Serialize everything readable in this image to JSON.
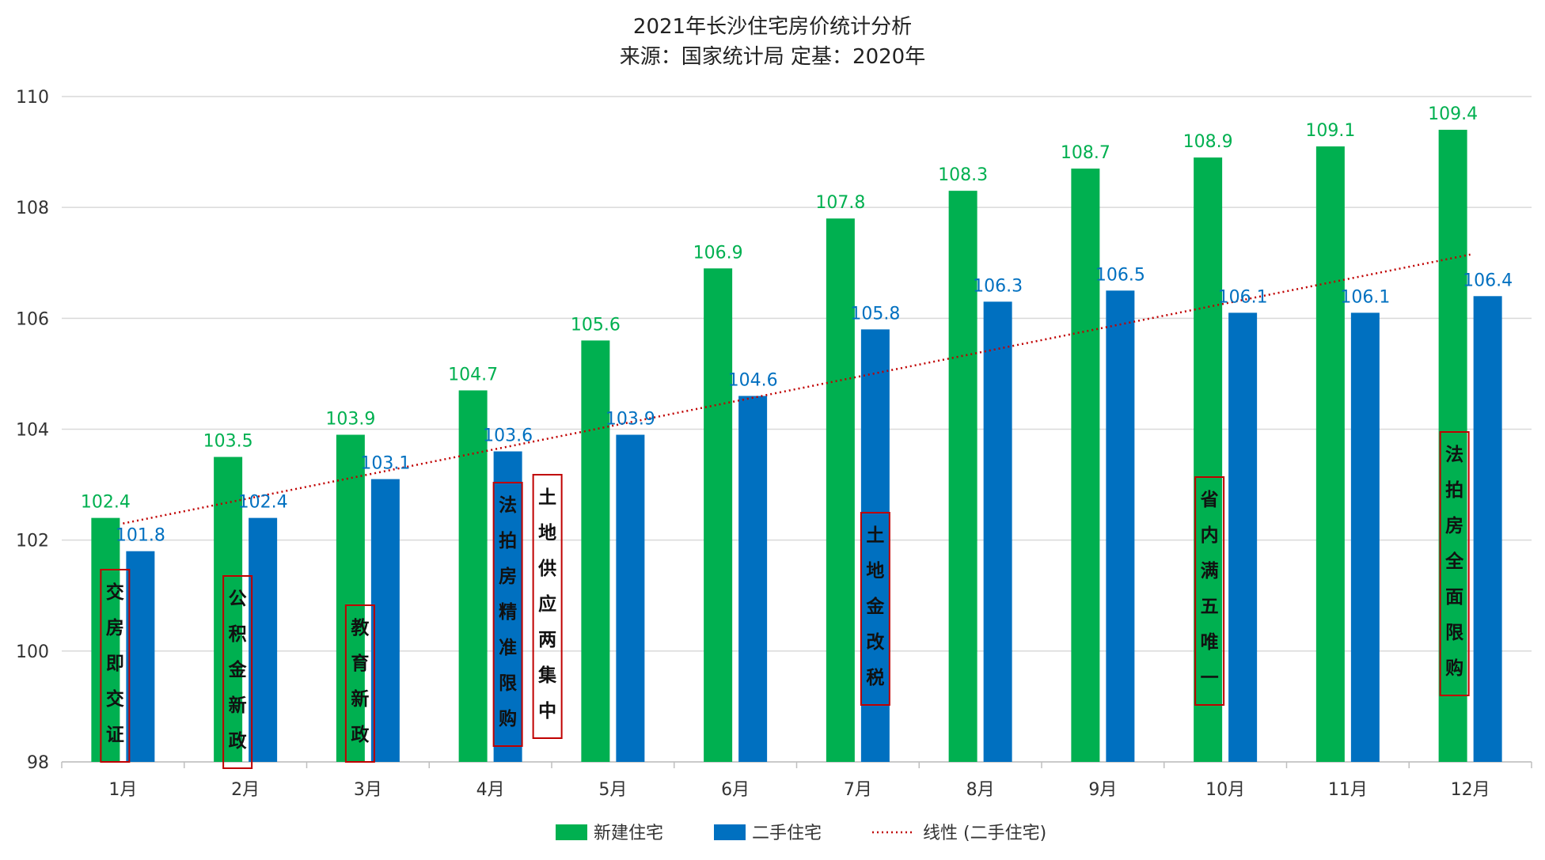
{
  "chart_data": {
    "type": "bar",
    "title": "2021年长沙住宅房价统计分析",
    "subtitle": "来源：国家统计局 定基：2020年",
    "xlabel": "",
    "ylabel": "",
    "categories": [
      "1月",
      "2月",
      "3月",
      "4月",
      "5月",
      "6月",
      "7月",
      "8月",
      "9月",
      "10月",
      "11月",
      "12月"
    ],
    "ylim": [
      98,
      110
    ],
    "yticks": [
      "98",
      "100",
      "102",
      "104",
      "106",
      "108",
      "110"
    ],
    "grid": true,
    "legend_position": "bottom",
    "series": [
      {
        "name": "新建住宅",
        "color": "#00B050",
        "values": [
          102.4,
          103.5,
          103.9,
          104.7,
          105.6,
          106.9,
          107.8,
          108.3,
          108.7,
          108.9,
          109.1,
          109.4
        ],
        "labels": [
          "102.4",
          "103.5",
          "103.9",
          "104.7",
          "105.6",
          "106.9",
          "107.8",
          "108.3",
          "108.7",
          "108.9",
          "109.1",
          "109.4"
        ]
      },
      {
        "name": "二手住宅",
        "color": "#0070C0",
        "values": [
          101.8,
          102.4,
          103.1,
          103.6,
          103.9,
          104.6,
          105.8,
          106.3,
          106.5,
          106.1,
          106.1,
          106.4
        ],
        "labels": [
          "101.8",
          "102.4",
          "103.1",
          "103.6",
          "103.9",
          "104.6",
          "105.8",
          "106.3",
          "106.5",
          "106.1",
          "106.1",
          "106.4"
        ]
      }
    ],
    "trendline": {
      "name": "线性 (二手住宅)",
      "color": "#C00000",
      "style": "dotted",
      "start": 102.3,
      "end": 107.15
    },
    "annotations": [
      {
        "text": "交房即交证",
        "month_index": 0
      },
      {
        "text": "公积金新政",
        "month_index": 1
      },
      {
        "text": "教育新政",
        "month_index": 2
      },
      {
        "text": "法拍房精准限购",
        "month_index": 3
      },
      {
        "text": "土地供应两集中",
        "month_index": 3.5
      },
      {
        "text": "土地金改税",
        "month_index": 6
      },
      {
        "text": "省内满五唯一",
        "month_index": 9
      },
      {
        "text": "法拍房全面限购",
        "month_index": 11
      }
    ],
    "annotation_color": "#C00000"
  }
}
